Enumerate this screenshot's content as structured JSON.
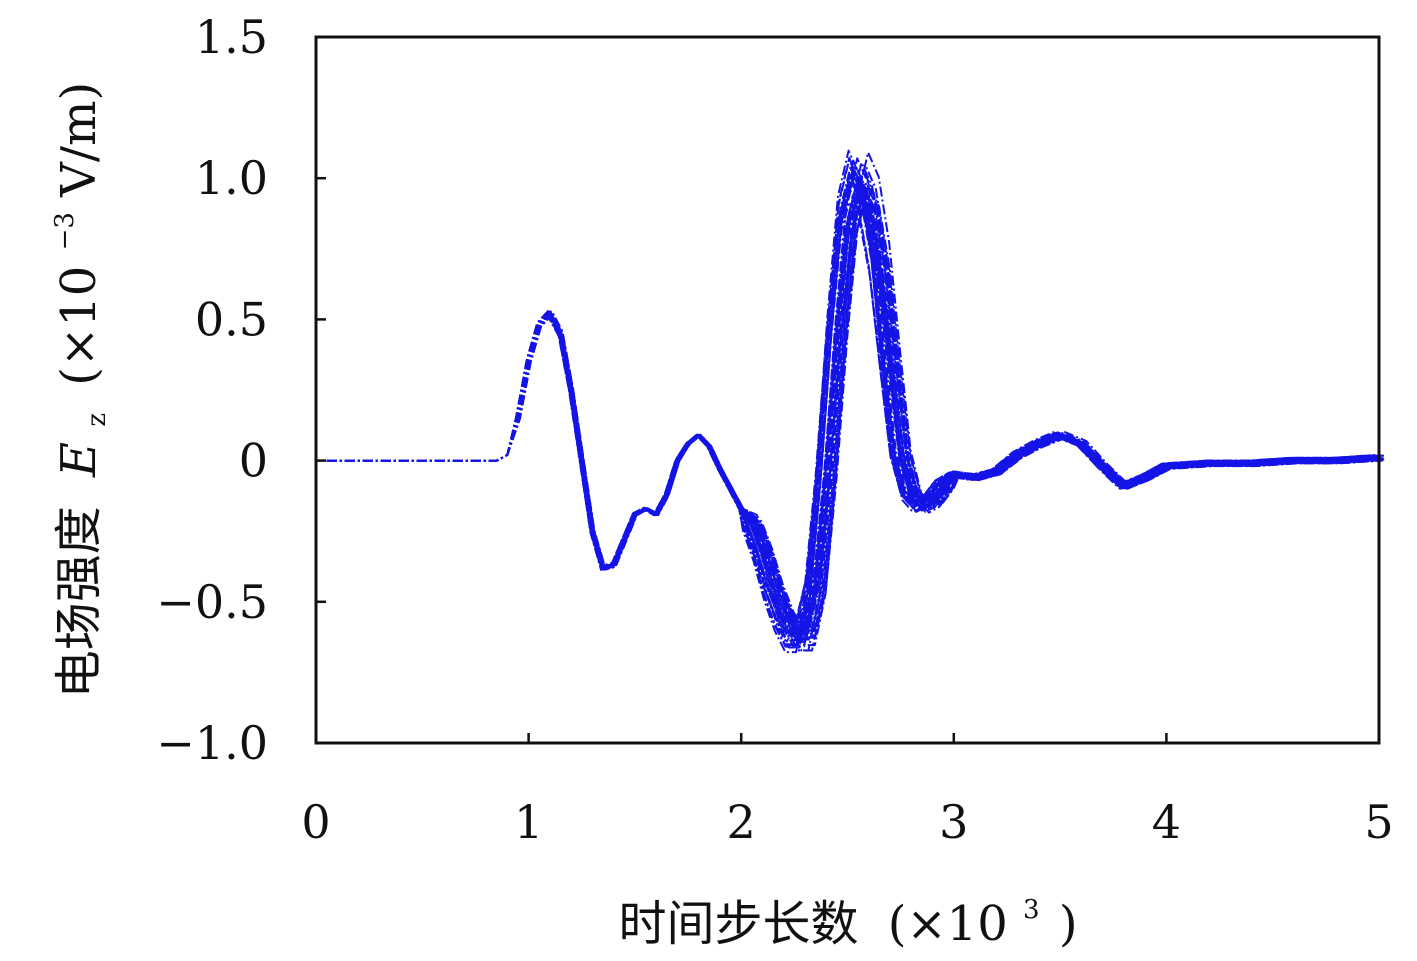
{
  "chart_data": {
    "type": "line",
    "xlabel": "时间步长数",
    "xlabel_unit": "(×10",
    "xlabel_exp": "3",
    "xlabel_close": ")",
    "ylabel": "电场强度",
    "ylabel_symbol": "E",
    "ylabel_sub": "z",
    "ylabel_unit": "(×10",
    "ylabel_exp": "−3",
    "ylabel_unit_tail": " V/m)",
    "xlim": [
      0,
      5
    ],
    "ylim": [
      -1.0,
      1.5
    ],
    "x_ticks": [
      0,
      1,
      2,
      3,
      4,
      5
    ],
    "x_tick_labels": [
      "0",
      "1",
      "2",
      "3",
      "4",
      "5"
    ],
    "y_ticks": [
      -1.0,
      -0.5,
      0,
      0.5,
      1.0,
      1.5
    ],
    "y_tick_labels": [
      "−1.0",
      "−0.5",
      "0",
      "0.5",
      "1.0",
      "1.5"
    ],
    "grid": false,
    "legend": "none",
    "series_color": "#1414e6",
    "series_count": 40,
    "reference_curve": {
      "x": [
        0.05,
        0.85,
        0.9,
        0.95,
        1.0,
        1.05,
        1.1,
        1.15,
        1.2,
        1.25,
        1.3,
        1.35,
        1.4,
        1.45,
        1.5,
        1.55,
        1.6,
        1.65,
        1.7,
        1.75,
        1.8,
        1.85,
        1.9,
        1.95,
        2.0,
        2.05,
        2.1,
        2.15,
        2.2,
        2.25,
        2.3,
        2.35,
        2.4,
        2.45,
        2.5,
        2.55,
        2.6,
        2.65,
        2.7,
        2.75,
        2.8,
        2.85,
        2.9,
        2.95,
        3.0,
        3.1,
        3.2,
        3.3,
        3.4,
        3.5,
        3.6,
        3.7,
        3.8,
        3.9,
        4.0,
        4.2,
        4.4,
        4.6,
        4.8,
        5.0
      ],
      "y": [
        0,
        0,
        0.02,
        0.15,
        0.35,
        0.48,
        0.52,
        0.45,
        0.25,
        0.0,
        -0.25,
        -0.38,
        -0.37,
        -0.28,
        -0.19,
        -0.17,
        -0.19,
        -0.12,
        0.0,
        0.06,
        0.09,
        0.05,
        -0.03,
        -0.1,
        -0.17,
        -0.22,
        -0.32,
        -0.45,
        -0.55,
        -0.62,
        -0.62,
        -0.45,
        -0.05,
        0.45,
        0.85,
        1.0,
        0.92,
        0.7,
        0.35,
        0.02,
        -0.12,
        -0.16,
        -0.14,
        -0.09,
        -0.05,
        -0.06,
        -0.04,
        0.02,
        0.06,
        0.09,
        0.06,
        -0.02,
        -0.09,
        -0.06,
        -0.02,
        -0.01,
        -0.01,
        0.0,
        0.0,
        0.01
      ]
    }
  }
}
